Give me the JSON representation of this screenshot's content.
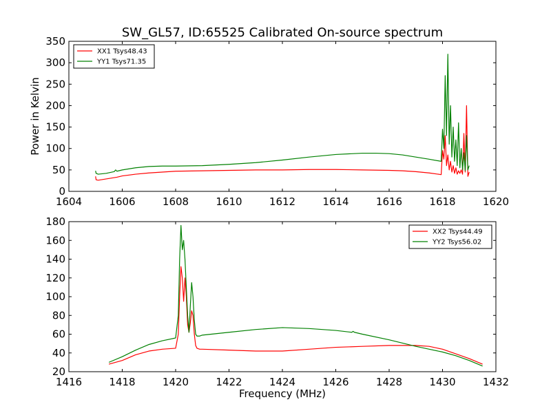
{
  "chart_data": [
    {
      "type": "line",
      "title": "SW_GL57, ID:65525 Calibrated On-source spectrum",
      "xlabel": "",
      "ylabel": "Power in Kelvin",
      "xlim": [
        1604,
        1620
      ],
      "ylim": [
        0,
        350
      ],
      "xticks": [
        "1604",
        "1606",
        "1608",
        "1610",
        "1612",
        "1614",
        "1616",
        "1618",
        "1620"
      ],
      "yticks": [
        "0",
        "50",
        "100",
        "150",
        "200",
        "250",
        "300",
        "350"
      ],
      "legend_position": "upper-left",
      "grid": false,
      "series": [
        {
          "name": "XX1 Tsys48.43",
          "color": "#ff0000",
          "x": [
            1605.0,
            1605.02,
            1605.1,
            1605.4,
            1605.8,
            1606.0,
            1606.5,
            1607.0,
            1607.5,
            1608.0,
            1609.0,
            1610.0,
            1611.0,
            1612.0,
            1613.0,
            1614.0,
            1615.0,
            1616.0,
            1616.5,
            1617.0,
            1617.5,
            1617.95,
            1618.0,
            1618.05,
            1618.1,
            1618.15,
            1618.2,
            1618.25,
            1618.3,
            1618.35,
            1618.4,
            1618.45,
            1618.5,
            1618.55,
            1618.6,
            1618.65,
            1618.7,
            1618.75,
            1618.8,
            1618.85,
            1618.9,
            1618.95,
            1619.0
          ],
          "y": [
            35,
            27,
            26,
            29,
            33,
            36,
            40,
            43,
            45,
            47,
            48,
            49,
            50,
            50,
            51,
            51,
            50,
            49,
            48,
            46,
            43,
            39,
            95,
            75,
            130,
            60,
            85,
            50,
            70,
            45,
            60,
            42,
            55,
            40,
            48,
            42,
            50,
            40,
            135,
            45,
            200,
            35,
            45
          ]
        },
        {
          "name": "YY1 Tsys71.35",
          "color": "#008000",
          "x": [
            1605.0,
            1605.02,
            1605.1,
            1605.4,
            1605.7,
            1605.75,
            1605.8,
            1606.0,
            1606.5,
            1607.0,
            1607.5,
            1608.0,
            1609.0,
            1610.0,
            1611.0,
            1612.0,
            1613.0,
            1614.0,
            1615.0,
            1615.5,
            1616.0,
            1616.5,
            1617.0,
            1617.5,
            1617.95,
            1618.0,
            1618.05,
            1618.1,
            1618.15,
            1618.2,
            1618.25,
            1618.3,
            1618.35,
            1618.4,
            1618.45,
            1618.5,
            1618.55,
            1618.6,
            1618.65,
            1618.7,
            1618.75,
            1618.8,
            1618.85,
            1618.9,
            1618.95,
            1619.0
          ],
          "y": [
            48,
            42,
            40,
            42,
            46,
            50,
            47,
            50,
            55,
            58,
            59,
            59,
            60,
            63,
            67,
            73,
            80,
            86,
            89,
            89,
            88,
            85,
            80,
            75,
            70,
            145,
            100,
            270,
            130,
            320,
            110,
            200,
            80,
            150,
            70,
            120,
            60,
            160,
            55,
            100,
            50,
            90,
            48,
            130,
            50,
            60
          ]
        }
      ]
    },
    {
      "type": "line",
      "title": "",
      "xlabel": "Frequency (MHz)",
      "ylabel": "",
      "xlim": [
        1416,
        1432
      ],
      "ylim": [
        20,
        180
      ],
      "xticks": [
        "1416",
        "1418",
        "1420",
        "1422",
        "1424",
        "1426",
        "1428",
        "1430",
        "1432"
      ],
      "yticks": [
        "20",
        "40",
        "60",
        "80",
        "100",
        "120",
        "140",
        "160",
        "180"
      ],
      "legend_position": "upper-right",
      "grid": false,
      "series": [
        {
          "name": "XX2 Tsys44.49",
          "color": "#ff0000",
          "x": [
            1417.5,
            1418.0,
            1418.5,
            1419.0,
            1419.5,
            1420.0,
            1420.1,
            1420.15,
            1420.2,
            1420.25,
            1420.3,
            1420.35,
            1420.4,
            1420.45,
            1420.5,
            1420.55,
            1420.6,
            1420.65,
            1420.7,
            1420.75,
            1420.8,
            1420.9,
            1421.0,
            1422.0,
            1423.0,
            1424.0,
            1425.0,
            1426.0,
            1427.0,
            1428.0,
            1429.0,
            1429.5,
            1430.0,
            1430.5,
            1431.0,
            1431.5
          ],
          "y": [
            28,
            32,
            38,
            42,
            44,
            45,
            60,
            100,
            132,
            120,
            95,
            120,
            100,
            70,
            62,
            72,
            85,
            80,
            60,
            48,
            45,
            44,
            44,
            43,
            42,
            42,
            44,
            46,
            47,
            48,
            48,
            47,
            44,
            39,
            34,
            28
          ]
        },
        {
          "name": "YY2 Tsys56.02",
          "color": "#008000",
          "x": [
            1417.5,
            1418.0,
            1418.5,
            1419.0,
            1419.5,
            1420.0,
            1420.1,
            1420.15,
            1420.2,
            1420.25,
            1420.3,
            1420.35,
            1420.4,
            1420.45,
            1420.5,
            1420.55,
            1420.6,
            1420.65,
            1420.7,
            1420.75,
            1420.8,
            1420.9,
            1421.0,
            1422.0,
            1423.0,
            1424.0,
            1425.0,
            1426.0,
            1426.6,
            1426.65,
            1426.7,
            1427.0,
            1428.0,
            1429.0,
            1429.5,
            1430.0,
            1430.5,
            1431.0,
            1431.5
          ],
          "y": [
            30,
            36,
            43,
            49,
            53,
            56,
            80,
            140,
            176,
            150,
            160,
            140,
            110,
            80,
            62,
            90,
            115,
            100,
            75,
            60,
            58,
            58,
            59,
            62,
            65,
            67,
            66,
            64,
            62,
            63,
            62,
            60,
            54,
            47,
            44,
            41,
            37,
            32,
            26
          ]
        }
      ]
    }
  ]
}
